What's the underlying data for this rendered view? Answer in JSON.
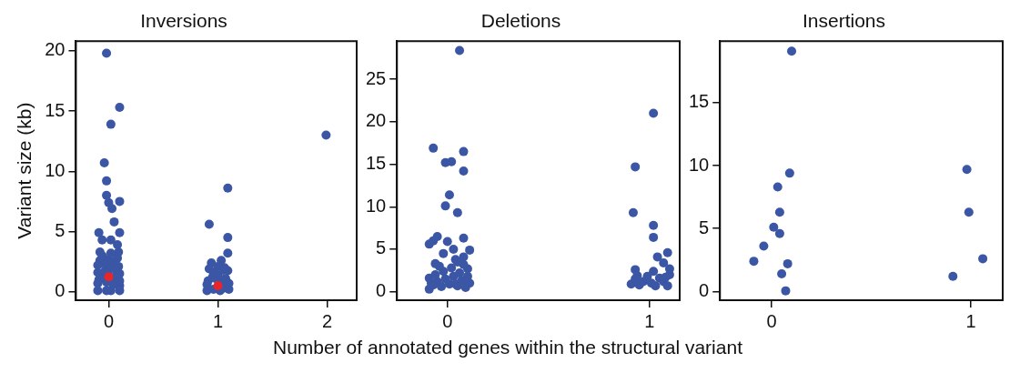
{
  "chart_data": [
    {
      "type": "scatter",
      "title": "Inversions",
      "ylabel": "Variant size (kb)",
      "xlim": [
        -0.3,
        2.27
      ],
      "xticks": [
        0,
        1,
        2
      ],
      "ylim": [
        -0.7,
        20.8
      ],
      "yticks": [
        0,
        5,
        10,
        15,
        20
      ],
      "grid": false,
      "legend": false,
      "marker": "circle",
      "series": [
        {
          "color": "#3a56a5",
          "x": [
            -0.02,
            0.1,
            0.02,
            -0.04,
            -0.02,
            -0.02,
            0.0,
            0.03,
            0.1,
            0.05,
            -0.09,
            0.1,
            -0.06,
            0.02,
            0.08,
            -0.08,
            0.09,
            -0.1,
            -0.02,
            0.02,
            0.04,
            0.1,
            -0.09,
            -0.06,
            -0.01,
            0.06,
            0.07,
            0.1,
            -0.1,
            -0.03,
            0.01,
            0.05,
            0.09,
            -0.08,
            -0.04,
            0.0,
            0.04,
            0.08,
            -0.1,
            -0.06,
            0.1,
            -0.1,
            0.1,
            0.02,
            -0.02,
            0.92,
            1.09,
            1.09,
            1.09,
            1.09,
            1.03,
            0.94,
            0.9,
            0.96,
            1.02,
            1.05,
            1.1,
            0.91,
            0.95,
            0.98,
            1.04,
            1.07,
            1.1,
            0.92,
            0.96,
            1.0,
            1.05,
            1.0,
            1.06,
            0.9,
            1.99
          ],
          "values": [
            19.8,
            15.3,
            13.9,
            10.7,
            9.2,
            8.0,
            7.4,
            6.9,
            7.5,
            5.8,
            4.9,
            4.9,
            4.3,
            4.3,
            3.9,
            3.3,
            3.3,
            0.1,
            0.8,
            0.1,
            0.6,
            0.5,
            1.0,
            1.3,
            1.5,
            0.9,
            1.4,
            0.9,
            1.6,
            1.8,
            2.2,
            1.9,
            2.1,
            2.6,
            2.4,
            2.7,
            2.5,
            2.8,
            2.2,
            3.0,
            1.5,
            0.7,
            0.1,
            3.2,
            0.1,
            5.6,
            8.6,
            4.5,
            3.2,
            1.75,
            2.6,
            2.4,
            0.1,
            0.2,
            0.1,
            0.3,
            0.2,
            0.9,
            1.2,
            1.1,
            0.8,
            1.1,
            0.7,
            1.9,
            1.6,
            1.4,
            1.8,
            2.1,
            2.0,
            0.6,
            13.0
          ]
        },
        {
          "color": "#e8262a",
          "x": [
            0.0,
            1.0
          ],
          "values": [
            1.25,
            0.5
          ]
        }
      ]
    },
    {
      "type": "scatter",
      "title": "Deletions",
      "xlabel": "Number of annotated genes within the structural variant",
      "xlim": [
        -0.25,
        1.15
      ],
      "xticks": [
        0,
        1
      ],
      "ylim": [
        -1.0,
        29.5
      ],
      "yticks": [
        0,
        5,
        10,
        15,
        20,
        25
      ],
      "grid": false,
      "legend": false,
      "marker": "circle",
      "series": [
        {
          "color": "#3a56a5",
          "x": [
            0.06,
            -0.07,
            0.08,
            -0.01,
            0.02,
            0.08,
            0.01,
            -0.01,
            0.05,
            0.08,
            -0.05,
            -0.07,
            -0.09,
            0.0,
            0.03,
            0.11,
            -0.02,
            0.08,
            -0.06,
            0.04,
            -0.09,
            -0.07,
            -0.05,
            -0.03,
            -0.01,
            0.01,
            0.03,
            0.05,
            0.07,
            0.09,
            0.11,
            -0.09,
            -0.06,
            -0.02,
            0.02,
            0.06,
            0.1,
            -0.04,
            0.08,
            -0.08,
            0.04,
            0.1,
            0.05,
            0.93,
            1.02,
            0.92,
            1.02,
            1.02,
            1.09,
            1.04,
            1.07,
            0.93,
            1.02,
            1.1,
            0.91,
            0.93,
            0.95,
            0.97,
            0.99,
            1.01,
            1.03,
            1.05,
            1.07,
            1.09,
            1.1,
            1.08,
            0.94
          ],
          "values": [
            28.4,
            16.9,
            16.5,
            15.2,
            15.3,
            14.2,
            11.4,
            10.1,
            9.3,
            6.3,
            6.5,
            6.0,
            5.6,
            5.9,
            5.0,
            4.9,
            4.5,
            4.1,
            3.3,
            3.8,
            0.3,
            0.8,
            1.2,
            0.6,
            1.5,
            0.9,
            1.8,
            0.7,
            1.3,
            0.5,
            1.0,
            1.6,
            2.0,
            2.4,
            2.8,
            2.2,
            2.7,
            3.0,
            3.2,
            1.0,
            0.9,
            1.8,
            3.5,
            14.7,
            21.0,
            9.3,
            7.8,
            6.4,
            4.6,
            4.1,
            3.4,
            2.6,
            2.4,
            2.7,
            0.9,
            1.5,
            0.8,
            1.2,
            1.8,
            1.0,
            0.7,
            1.6,
            1.2,
            0.7,
            2.0,
            1.7,
            1.9
          ]
        }
      ]
    },
    {
      "type": "scatter",
      "title": "Insertions",
      "xlim": [
        -0.26,
        1.16
      ],
      "xticks": [
        0,
        1
      ],
      "ylim": [
        -0.7,
        19.9
      ],
      "yticks": [
        0,
        5,
        10,
        15
      ],
      "grid": false,
      "legend": false,
      "marker": "circle",
      "series": [
        {
          "color": "#3a56a5",
          "x": [
            0.1,
            0.09,
            0.03,
            0.04,
            0.01,
            0.04,
            -0.04,
            -0.09,
            0.08,
            0.05,
            0.07,
            0.98,
            0.99,
            1.06,
            0.91
          ],
          "values": [
            19.1,
            9.4,
            8.3,
            6.3,
            5.1,
            4.6,
            3.6,
            2.4,
            2.2,
            1.4,
            0.05,
            9.7,
            6.3,
            2.6,
            1.2
          ]
        }
      ]
    }
  ]
}
